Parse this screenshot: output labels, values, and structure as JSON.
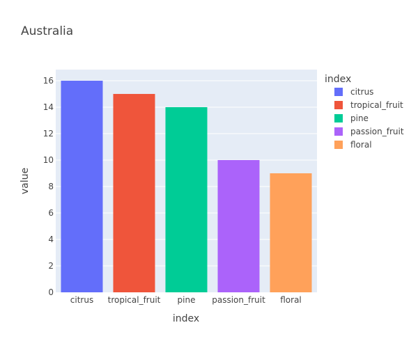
{
  "chart_data": {
    "type": "bar",
    "title": "Australia",
    "xlabel": "index",
    "ylabel": "value",
    "categories": [
      "citrus",
      "tropical_fruit",
      "pine",
      "passion_fruit",
      "floral"
    ],
    "values": [
      16,
      15,
      14,
      10,
      9
    ],
    "colors": [
      "#636efa",
      "#ef553b",
      "#00cc96",
      "#ab63fa",
      "#ffa15a"
    ],
    "ylim": [
      0,
      16.84
    ],
    "yticks": [
      "0",
      "2",
      "4",
      "6",
      "8",
      "10",
      "12",
      "14",
      "16"
    ],
    "grid": true,
    "legend": {
      "title": "index",
      "placement": "top-right",
      "items": [
        "citrus",
        "tropical_fruit",
        "pine",
        "passion_fruit",
        "floral"
      ]
    },
    "plot_background": "#e5ecf6"
  }
}
